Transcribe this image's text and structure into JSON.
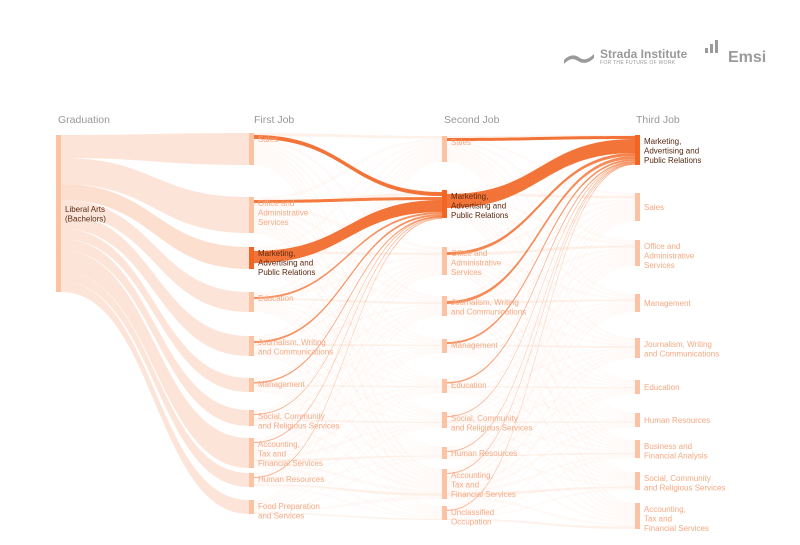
{
  "brand": {
    "strada_name": "Strada Institute",
    "strada_tagline": "FOR THE FUTURE OF WORK",
    "emsi_name": "Emsi"
  },
  "colors": {
    "highlight": "#f26522",
    "light": "#fcd9c7",
    "node": "#fbc3a4",
    "label_dark": "#5a2a14",
    "label_light": "#f5a983",
    "header": "#999999"
  },
  "columns": [
    {
      "title": "Graduation",
      "nodes": [
        {
          "label": "Liberal Arts\n(Bachelors)",
          "highlight": false
        }
      ]
    },
    {
      "title": "First Job",
      "nodes": [
        {
          "label": "Sales",
          "highlight": false
        },
        {
          "label": "Office and\nAdministrative\nServices",
          "highlight": false
        },
        {
          "label": "Marketing,\nAdvertising and\nPublic Relations",
          "highlight": true
        },
        {
          "label": "Education",
          "highlight": false
        },
        {
          "label": "Journalism, Writing\nand Communications",
          "highlight": false
        },
        {
          "label": "Management",
          "highlight": false
        },
        {
          "label": "Social, Community\nand Religious Services",
          "highlight": false
        },
        {
          "label": "Accounting,\nTax and\nFinancial Services",
          "highlight": false
        },
        {
          "label": "Human Resources",
          "highlight": false
        },
        {
          "label": "Food Preparation\nand Services",
          "highlight": false
        }
      ]
    },
    {
      "title": "Second Job",
      "nodes": [
        {
          "label": "Sales",
          "highlight": false
        },
        {
          "label": "Marketing,\nAdvertising and\nPublic Relations",
          "highlight": true
        },
        {
          "label": "Office and\nAdministrative\nServices",
          "highlight": false
        },
        {
          "label": "Journalism, Writing\nand Communications",
          "highlight": false
        },
        {
          "label": "Management",
          "highlight": false
        },
        {
          "label": "Education",
          "highlight": false
        },
        {
          "label": "Social, Community\nand Religious Services",
          "highlight": false
        },
        {
          "label": "Human Resources",
          "highlight": false
        },
        {
          "label": "Accounting,\nTax and\nFinancial Services",
          "highlight": false
        },
        {
          "label": "Unclassified\nOccupation",
          "highlight": false
        }
      ]
    },
    {
      "title": "Third Job",
      "nodes": [
        {
          "label": "Marketing,\nAdvertising and\nPublic Relations",
          "highlight": true
        },
        {
          "label": "Sales",
          "highlight": false
        },
        {
          "label": "Office and\nAdministrative\nServices",
          "highlight": false
        },
        {
          "label": "Management",
          "highlight": false
        },
        {
          "label": "Journalism, Writing\nand Communications",
          "highlight": false
        },
        {
          "label": "Education",
          "highlight": false
        },
        {
          "label": "Human Resources",
          "highlight": false
        },
        {
          "label": "Business and\nFinancial Analysis",
          "highlight": false
        },
        {
          "label": "Social, Community\nand Religious Services",
          "highlight": false
        },
        {
          "label": "Accounting,\nTax and\nFinancial Services",
          "highlight": false
        }
      ]
    }
  ]
}
